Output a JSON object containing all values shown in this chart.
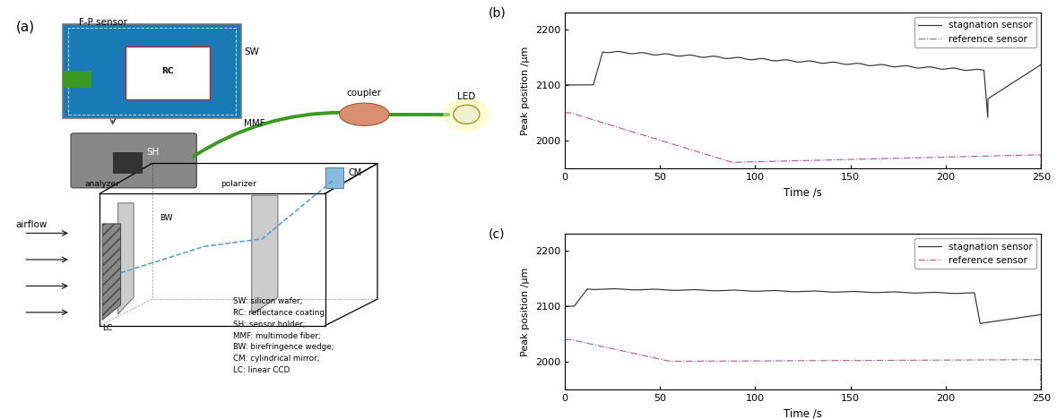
{
  "fig_width": 11.79,
  "fig_height": 4.68,
  "dpi": 100,
  "panel_b": {
    "label": "(b)",
    "xlabel": "Time /s",
    "ylabel": "Peak position /μm",
    "xlim": [
      0,
      250
    ],
    "ylim": [
      1950,
      2230
    ],
    "yticks": [
      2000,
      2100,
      2200
    ],
    "xticks": [
      0,
      50,
      100,
      150,
      200,
      250
    ],
    "stagnation_color": "#333333",
    "reference_color": "#aa6688",
    "legend_labels": [
      "stagnation sensor",
      "reference sensor"
    ]
  },
  "panel_c": {
    "label": "(c)",
    "xlabel": "Time /s",
    "ylabel": "Peak position /μm",
    "xlim": [
      0,
      250
    ],
    "ylim": [
      1950,
      2230
    ],
    "yticks": [
      2000,
      2100,
      2200
    ],
    "xticks": [
      0,
      50,
      100,
      150,
      200,
      250
    ],
    "stagnation_color": "#333333",
    "reference_color": "#aa6688",
    "legend_labels": [
      "stagnation sensor",
      "reference sensor"
    ]
  },
  "diagram_label": "(a)",
  "diagram_bg": "#f2f2ee",
  "annotation_lines": [
    "SW: silicon wafer;",
    "RC: reflectance coating;",
    "SH: sensor holder;",
    "MMF: multimode fiber;",
    "BW: birefringence wedge;",
    "CM: cylindrical mirror;",
    "LC: linear CCD"
  ]
}
